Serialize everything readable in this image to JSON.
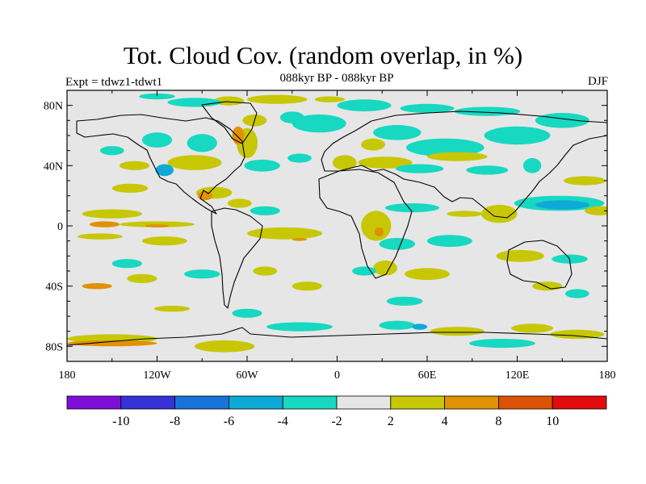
{
  "title": "Tot. Cloud Cov. (random overlap, in %)",
  "subtitle": "088kyr BP - 088kyr BP",
  "experiment": "Expt = tdwz1-tdwt1",
  "season": "DJF",
  "map": {
    "lat_labels": [
      "80N",
      "40N",
      "0",
      "40S",
      "80S"
    ],
    "lat_values": [
      80,
      40,
      0,
      -40,
      -80
    ],
    "lon_labels": [
      "180",
      "120W",
      "60W",
      "0",
      "60E",
      "120E",
      "180"
    ],
    "lon_values": [
      -180,
      -120,
      -60,
      0,
      60,
      120,
      180
    ],
    "background_color": "#e6e6e6"
  },
  "colorbar": {
    "colors": [
      "#7f0fd8",
      "#3533d6",
      "#1872dc",
      "#0fa9d8",
      "#17d8c0",
      "#e6e6e6",
      "#c7c705",
      "#e09106",
      "#dc5206",
      "#e30c0c"
    ],
    "labels": [
      "-10",
      "-8",
      "-6",
      "-4",
      "-2",
      "2",
      "4",
      "8",
      "10"
    ]
  },
  "chart_data": {
    "type": "heatmap",
    "title": "Tot. Cloud Cov. (random overlap, in %)",
    "subtitle": "088kyr BP - 088kyr BP",
    "xlabel": "",
    "ylabel": "",
    "xlim": [
      -180,
      180
    ],
    "ylim": [
      -90,
      90
    ],
    "levels": [
      -10,
      -8,
      -6,
      -4,
      -2,
      2,
      4,
      8,
      10
    ],
    "blobs": [
      {
        "lon": -72,
        "lat": 83,
        "w": 10,
        "h": 3,
        "value": 3
      },
      {
        "lon": -40,
        "lat": 84,
        "w": 20,
        "h": 3,
        "value": 3
      },
      {
        "lon": -5,
        "lat": 84,
        "w": 10,
        "h": 2,
        "value": 3
      },
      {
        "lon": -120,
        "lat": 86,
        "w": 12,
        "h": 2,
        "value": -3
      },
      {
        "lon": -95,
        "lat": 82,
        "w": 18,
        "h": 3,
        "value": -3
      },
      {
        "lon": -30,
        "lat": 72,
        "w": 8,
        "h": 4,
        "value": -3
      },
      {
        "lon": -12,
        "lat": 68,
        "w": 18,
        "h": 6,
        "value": -3
      },
      {
        "lon": 18,
        "lat": 80,
        "w": 18,
        "h": 4,
        "value": -3
      },
      {
        "lon": 60,
        "lat": 78,
        "w": 18,
        "h": 3,
        "value": -3
      },
      {
        "lon": 100,
        "lat": 76,
        "w": 22,
        "h": 3,
        "value": -3
      },
      {
        "lon": 150,
        "lat": 70,
        "w": 18,
        "h": 5,
        "value": -3
      },
      {
        "lon": 120,
        "lat": 60,
        "w": 22,
        "h": 6,
        "value": -3
      },
      {
        "lon": 40,
        "lat": 62,
        "w": 16,
        "h": 5,
        "value": -3
      },
      {
        "lon": 72,
        "lat": 52,
        "w": 26,
        "h": 6,
        "value": -3
      },
      {
        "lon": 80,
        "lat": 46,
        "w": 20,
        "h": 3,
        "value": 3
      },
      {
        "lon": 24,
        "lat": 54,
        "w": 8,
        "h": 4,
        "value": 3
      },
      {
        "lon": -55,
        "lat": 70,
        "w": 8,
        "h": 4,
        "value": 3
      },
      {
        "lon": -60,
        "lat": 55,
        "w": 7,
        "h": 10,
        "value": 3
      },
      {
        "lon": -66,
        "lat": 60,
        "w": 4,
        "h": 6,
        "value": 6
      },
      {
        "lon": -90,
        "lat": 55,
        "w": 10,
        "h": 6,
        "value": -3
      },
      {
        "lon": -120,
        "lat": 57,
        "w": 10,
        "h": 5,
        "value": -3
      },
      {
        "lon": -150,
        "lat": 50,
        "w": 8,
        "h": 3,
        "value": -3
      },
      {
        "lon": -135,
        "lat": 40,
        "w": 10,
        "h": 3,
        "value": 3
      },
      {
        "lon": -95,
        "lat": 42,
        "w": 18,
        "h": 5,
        "value": 3
      },
      {
        "lon": -115,
        "lat": 37,
        "w": 6,
        "h": 4,
        "value": -5
      },
      {
        "lon": -50,
        "lat": 40,
        "w": 12,
        "h": 4,
        "value": -3
      },
      {
        "lon": -25,
        "lat": 45,
        "w": 8,
        "h": 3,
        "value": -3
      },
      {
        "lon": 5,
        "lat": 42,
        "w": 8,
        "h": 5,
        "value": 3
      },
      {
        "lon": 32,
        "lat": 42,
        "w": 18,
        "h": 4,
        "value": 3
      },
      {
        "lon": 55,
        "lat": 38,
        "w": 16,
        "h": 3,
        "value": -3
      },
      {
        "lon": 100,
        "lat": 37,
        "w": 14,
        "h": 3,
        "value": -3
      },
      {
        "lon": 130,
        "lat": 40,
        "w": 6,
        "h": 5,
        "value": -3
      },
      {
        "lon": 165,
        "lat": 30,
        "w": 14,
        "h": 3,
        "value": 3
      },
      {
        "lon": -138,
        "lat": 25,
        "w": 12,
        "h": 3,
        "value": 3
      },
      {
        "lon": -82,
        "lat": 22,
        "w": 12,
        "h": 4,
        "value": 3
      },
      {
        "lon": -88,
        "lat": 20,
        "w": 5,
        "h": 3,
        "value": 6
      },
      {
        "lon": -65,
        "lat": 15,
        "w": 8,
        "h": 3,
        "value": 3
      },
      {
        "lon": -48,
        "lat": 10,
        "w": 10,
        "h": 3,
        "value": -3
      },
      {
        "lon": 50,
        "lat": 12,
        "w": 18,
        "h": 3,
        "value": -3
      },
      {
        "lon": 85,
        "lat": 8,
        "w": 12,
        "h": 2,
        "value": 3
      },
      {
        "lon": 108,
        "lat": 8,
        "w": 12,
        "h": 6,
        "value": 3
      },
      {
        "lon": 148,
        "lat": 15,
        "w": 30,
        "h": 5,
        "value": -3
      },
      {
        "lon": 150,
        "lat": 14,
        "w": 18,
        "h": 3,
        "value": -6
      },
      {
        "lon": 175,
        "lat": 10,
        "w": 10,
        "h": 3,
        "value": 3
      },
      {
        "lon": -150,
        "lat": 8,
        "w": 20,
        "h": 3,
        "value": 3
      },
      {
        "lon": -120,
        "lat": 1,
        "w": 25,
        "h": 2,
        "value": 3
      },
      {
        "lon": -155,
        "lat": 1,
        "w": 10,
        "h": 2,
        "value": 6
      },
      {
        "lon": -120,
        "lat": 0,
        "w": 8,
        "h": 1,
        "value": 6
      },
      {
        "lon": -158,
        "lat": -7,
        "w": 15,
        "h": 2,
        "value": 3
      },
      {
        "lon": -115,
        "lat": -10,
        "w": 15,
        "h": 3,
        "value": 3
      },
      {
        "lon": -35,
        "lat": -5,
        "w": 25,
        "h": 4,
        "value": 3
      },
      {
        "lon": -25,
        "lat": -9,
        "w": 5,
        "h": 1,
        "value": 6
      },
      {
        "lon": 26,
        "lat": 0,
        "w": 10,
        "h": 10,
        "value": 3
      },
      {
        "lon": 28,
        "lat": -4,
        "w": 3,
        "h": 3,
        "value": 6
      },
      {
        "lon": 40,
        "lat": -12,
        "w": 12,
        "h": 4,
        "value": -3
      },
      {
        "lon": 75,
        "lat": -10,
        "w": 15,
        "h": 4,
        "value": -3
      },
      {
        "lon": 122,
        "lat": -20,
        "w": 16,
        "h": 4,
        "value": 3
      },
      {
        "lon": 155,
        "lat": -22,
        "w": 12,
        "h": 3,
        "value": -3
      },
      {
        "lon": 32,
        "lat": -28,
        "w": 8,
        "h": 5,
        "value": 3
      },
      {
        "lon": 18,
        "lat": -30,
        "w": 8,
        "h": 3,
        "value": -3
      },
      {
        "lon": 60,
        "lat": -32,
        "w": 15,
        "h": 4,
        "value": 3
      },
      {
        "lon": -48,
        "lat": -30,
        "w": 8,
        "h": 3,
        "value": 3
      },
      {
        "lon": -140,
        "lat": -25,
        "w": 10,
        "h": 3,
        "value": -3
      },
      {
        "lon": -90,
        "lat": -32,
        "w": 12,
        "h": 3,
        "value": -3
      },
      {
        "lon": -130,
        "lat": -35,
        "w": 10,
        "h": 3,
        "value": 3
      },
      {
        "lon": -160,
        "lat": -40,
        "w": 10,
        "h": 2,
        "value": 6
      },
      {
        "lon": -20,
        "lat": -40,
        "w": 10,
        "h": 3,
        "value": 3
      },
      {
        "lon": 45,
        "lat": -50,
        "w": 12,
        "h": 3,
        "value": -3
      },
      {
        "lon": 140,
        "lat": -40,
        "w": 10,
        "h": 3,
        "value": 3
      },
      {
        "lon": 160,
        "lat": -45,
        "w": 8,
        "h": 3,
        "value": -3
      },
      {
        "lon": -110,
        "lat": -55,
        "w": 12,
        "h": 2,
        "value": 3
      },
      {
        "lon": -60,
        "lat": -58,
        "w": 10,
        "h": 3,
        "value": -3
      },
      {
        "lon": -150,
        "lat": -75,
        "w": 30,
        "h": 3,
        "value": 3
      },
      {
        "lon": -150,
        "lat": -78,
        "w": 30,
        "h": 2,
        "value": 6
      },
      {
        "lon": -75,
        "lat": -80,
        "w": 20,
        "h": 4,
        "value": 3
      },
      {
        "lon": -25,
        "lat": -67,
        "w": 22,
        "h": 3,
        "value": -3
      },
      {
        "lon": 40,
        "lat": -66,
        "w": 12,
        "h": 3,
        "value": -3
      },
      {
        "lon": 55,
        "lat": -67,
        "w": 5,
        "h": 2,
        "value": -5
      },
      {
        "lon": 80,
        "lat": -70,
        "w": 18,
        "h": 3,
        "value": 3
      },
      {
        "lon": 130,
        "lat": -68,
        "w": 14,
        "h": 3,
        "value": 3
      },
      {
        "lon": 160,
        "lat": -72,
        "w": 18,
        "h": 3,
        "value": 3
      },
      {
        "lon": 110,
        "lat": -78,
        "w": 22,
        "h": 3,
        "value": -3
      }
    ]
  }
}
